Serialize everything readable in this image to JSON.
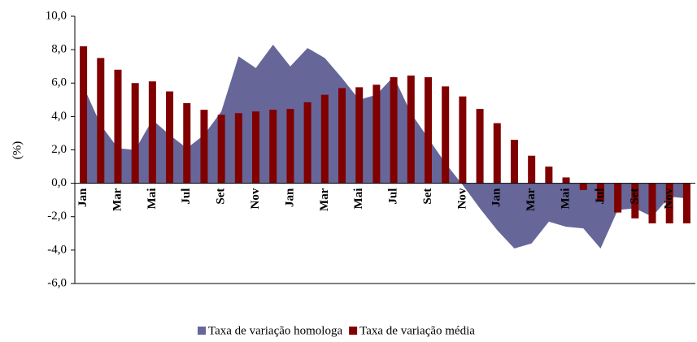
{
  "chart_data": {
    "type": "bar_area",
    "ylabel": "(%)",
    "categories": [
      "Jan",
      null,
      "Mar",
      null,
      "Mai",
      null,
      "Jul",
      null,
      "Set",
      null,
      "Nov",
      null,
      "Jan",
      null,
      "Mar",
      null,
      "Mai",
      null,
      "Jul",
      null,
      "Set",
      null,
      "Nov",
      null,
      "Jan",
      null,
      "Mar",
      null,
      "Mai",
      null,
      "Jul",
      null,
      "Set",
      null,
      "Nov",
      null
    ],
    "series": [
      {
        "name": "Taxa de variação homologa",
        "kind": "area",
        "color": "#666699",
        "values": [
          5.8,
          3.5,
          2.1,
          2.0,
          3.8,
          2.9,
          2.1,
          2.9,
          4.3,
          7.6,
          6.9,
          8.3,
          7.0,
          8.1,
          7.5,
          6.3,
          5.0,
          5.3,
          6.4,
          4.2,
          2.7,
          1.2,
          -0.1,
          -1.5,
          -2.8,
          -3.9,
          -3.6,
          -2.3,
          -2.6,
          -2.7,
          -3.9,
          -1.6,
          -1.5,
          -2.0,
          -0.8,
          -0.9
        ]
      },
      {
        "name": "Taxa de variação média",
        "kind": "bar",
        "color": "#800000",
        "values": [
          8.2,
          7.5,
          6.8,
          6.0,
          6.1,
          5.5,
          4.8,
          4.4,
          4.1,
          4.2,
          4.3,
          4.4,
          4.45,
          4.85,
          5.3,
          5.7,
          5.75,
          5.9,
          6.35,
          6.45,
          6.35,
          5.8,
          5.2,
          4.45,
          3.6,
          2.6,
          1.65,
          1.0,
          0.35,
          -0.4,
          -1.1,
          -1.75,
          -2.1,
          -2.4,
          -2.4,
          -2.4
        ]
      }
    ],
    "ylim": [
      -6,
      10
    ],
    "yticks": [
      {
        "value": 10,
        "label": "10,0"
      },
      {
        "value": 8,
        "label": "8,0"
      },
      {
        "value": 6,
        "label": "6,0"
      },
      {
        "value": 4,
        "label": "4,0"
      },
      {
        "value": 2,
        "label": "2,0"
      },
      {
        "value": 0,
        "label": "0,0"
      },
      {
        "value": -2,
        "label": "-2,0"
      },
      {
        "value": -4,
        "label": "-4,0"
      },
      {
        "value": -6,
        "label": "-6,0"
      }
    ],
    "grid": false,
    "legend": "bottom"
  }
}
